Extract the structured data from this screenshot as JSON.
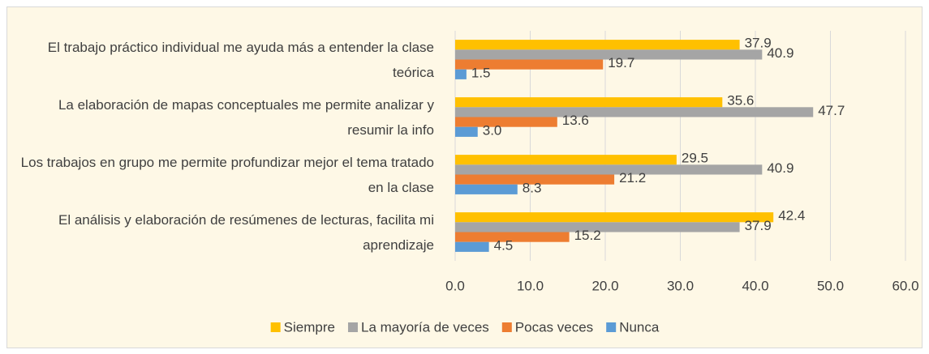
{
  "chart_data": {
    "type": "hbar",
    "categories": [
      "El trabajo práctico individual me ayuda más a entender la clase teórica",
      "La elaboración de mapas conceptuales me permite analizar y resumir la info",
      "Los trabajos en grupo me permite profundizar mejor el tema tratado en la clase",
      "El análisis y elaboración de resúmenes de lecturas, facilita mi aprendizaje"
    ],
    "series": [
      {
        "name": "Siempre",
        "color": "#ffc000",
        "values": [
          37.9,
          35.6,
          29.5,
          42.4
        ],
        "value_labels": [
          "37.9",
          "35.6",
          "29.5",
          "42.4"
        ]
      },
      {
        "name": "La mayoría de veces",
        "color": "#a5a5a5",
        "values": [
          40.9,
          47.7,
          40.9,
          37.9
        ],
        "value_labels": [
          "40.9",
          "47.7",
          "40.9",
          "37.9"
        ]
      },
      {
        "name": "Pocas veces",
        "color": "#ed7d31",
        "values": [
          19.7,
          13.6,
          21.2,
          15.2
        ],
        "value_labels": [
          "19.7",
          "13.6",
          "21.2",
          "15.2"
        ]
      },
      {
        "name": "Nunca",
        "color": "#5b9bd5",
        "values": [
          1.5,
          3.0,
          8.3,
          4.5
        ],
        "value_labels": [
          "1.5",
          "3.0",
          "8.3",
          "4.5"
        ]
      }
    ],
    "xlim": [
      0,
      60
    ],
    "xticks": [
      {
        "value": 0,
        "label": "0.0"
      },
      {
        "value": 10,
        "label": "10.0"
      },
      {
        "value": 20,
        "label": "20.0"
      },
      {
        "value": 30,
        "label": "30.0"
      },
      {
        "value": 40,
        "label": "40.0"
      },
      {
        "value": 50,
        "label": "50.0"
      },
      {
        "value": 60,
        "label": "60.0"
      }
    ],
    "grid": true,
    "legend": "bottom",
    "background": "#fef8e6"
  }
}
